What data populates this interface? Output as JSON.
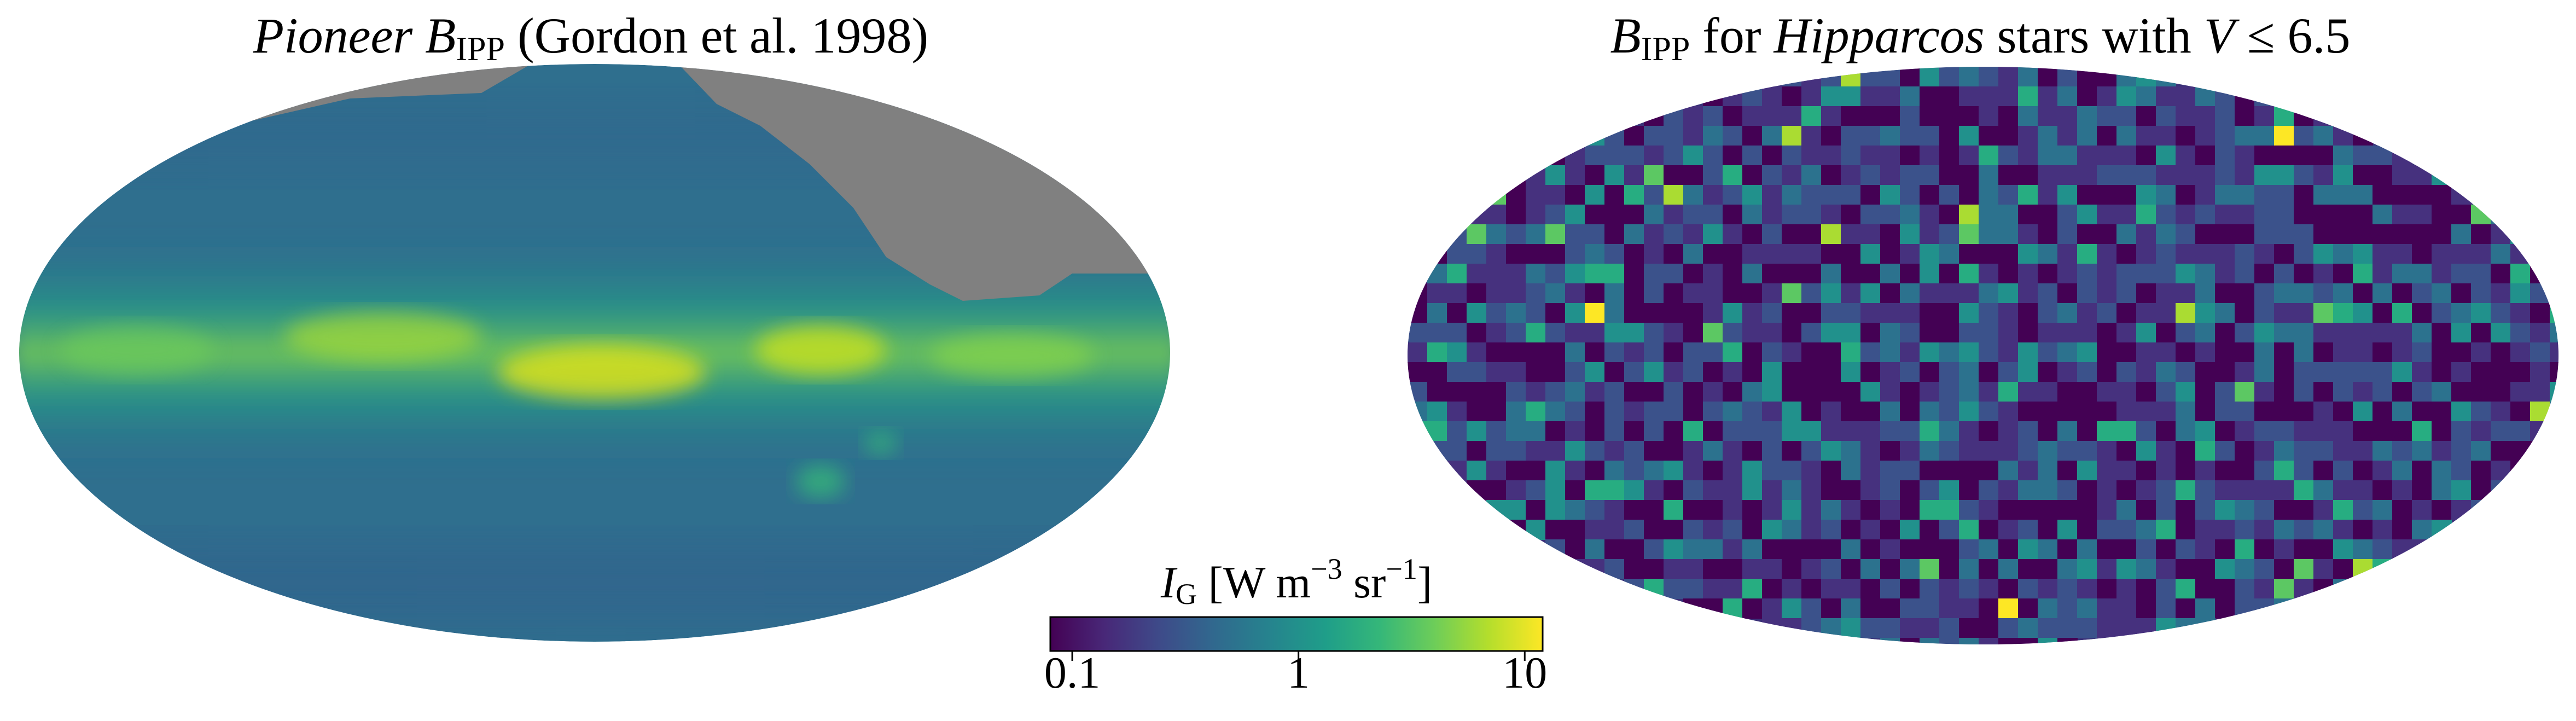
{
  "chart_data": [
    {
      "type": "heatmap",
      "projection": "mollweide",
      "title": {
        "italic": "Pioneer",
        "symbol": "B",
        "subscript": "IPP",
        "rest": " (Gordon et al. 1998)"
      },
      "masked_region_color": "#808080",
      "structure": "bright galactic band along the equator, faint at high latitudes; upper-right region masked (no data)"
    },
    {
      "type": "heatmap",
      "projection": "mollweide",
      "title": {
        "symbol": "B",
        "subscript": "IPP",
        "mid": " for ",
        "italic": "Hipparcos",
        "rest_pre": " stars with ",
        "var": "V",
        "rest": " ≤ 6.5"
      },
      "structure": "patchy pixelated map of bright-star contributions scattered over the sky"
    }
  ],
  "colorbar": {
    "label": {
      "symbol": "I",
      "subscript": "G",
      "unit_pre": " [W m",
      "exp1": "−3",
      "unit_mid": " sr",
      "exp2": "−1",
      "unit_post": "]"
    },
    "scale": "log",
    "range": [
      0.08,
      12
    ],
    "ticks": [
      {
        "value": 0.1,
        "label": "0.1"
      },
      {
        "value": 1,
        "label": "1"
      },
      {
        "value": 10,
        "label": "10"
      }
    ],
    "colormap": "viridis",
    "colors": [
      "#440154",
      "#482878",
      "#3e4a89",
      "#31688e",
      "#26828e",
      "#1f9e89",
      "#35b779",
      "#6dcd59",
      "#b4de2c",
      "#fde725"
    ]
  }
}
